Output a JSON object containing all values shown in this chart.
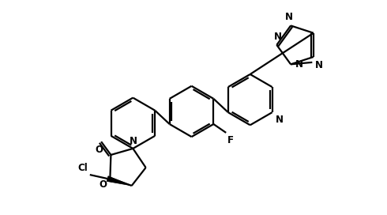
{
  "background": "#ffffff",
  "bond_color": "#000000",
  "bond_width": 1.6,
  "font_size": 8.5,
  "figsize": [
    4.9,
    2.72
  ],
  "dpi": 100,
  "xlim": [
    0,
    9.8
  ],
  "ylim": [
    0,
    5.5
  ]
}
